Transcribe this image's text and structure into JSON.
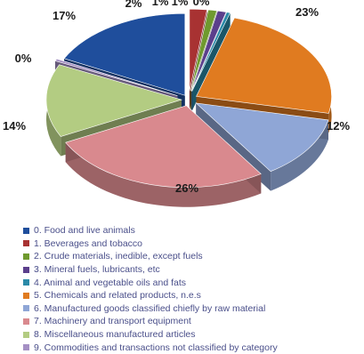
{
  "chart_data": {
    "type": "pie",
    "title": "",
    "legend_position": "bottom",
    "slices": [
      {
        "label": "0. Food and live animals",
        "value": 17,
        "value_label": "17%",
        "color": "#1f4e9c"
      },
      {
        "label": "1.  Beverages and tobacco",
        "value": 2,
        "value_label": "2%",
        "color": "#a83232"
      },
      {
        "label": "2. Crude materials, inedible, except fuels",
        "value": 1,
        "value_label": "1%",
        "color": "#6f9a2e"
      },
      {
        "label": "3. Mineral fuels, lubricants, etc",
        "value": 1,
        "value_label": "1%",
        "color": "#5b3f8c"
      },
      {
        "label": "4. Animal and vegetable oils and fats",
        "value": 0,
        "value_label": "0%",
        "color": "#2a8aa8"
      },
      {
        "label": "5. Chemicals and related products, n.e.s",
        "value": 23,
        "value_label": "23%",
        "color": "#e07b20"
      },
      {
        "label": "6. Manufactured goods classified chiefly by raw material",
        "value": 12,
        "value_label": "12%",
        "color": "#8fa6d6"
      },
      {
        "label": "7. Machinery and transport equipment",
        "value": 26,
        "value_label": "26%",
        "color": "#d9898e"
      },
      {
        "label": "8. Miscellaneous manufactured articles",
        "value": 14,
        "value_label": "14%",
        "color": "#b3cc82"
      },
      {
        "label": "9. Commodities and transactions not classified by category",
        "value": 0,
        "value_label": "0%",
        "color": "#a590c4"
      }
    ]
  }
}
